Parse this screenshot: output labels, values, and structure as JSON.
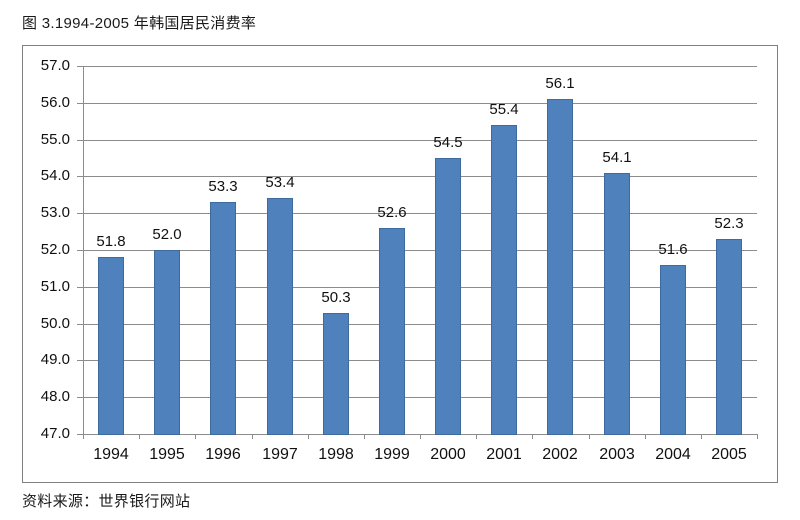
{
  "figure": {
    "title": "图 3.1994-2005 年韩国居民消费率",
    "source": "资料来源：世界银行网站"
  },
  "chart_data": {
    "type": "bar",
    "title": "图 3.1994-2005 年韩国居民消费率",
    "xlabel": "",
    "ylabel": "",
    "categories": [
      "1994",
      "1995",
      "1996",
      "1997",
      "1998",
      "1999",
      "2000",
      "2001",
      "2002",
      "2003",
      "2004",
      "2005"
    ],
    "values": [
      51.8,
      52.0,
      53.3,
      53.4,
      50.3,
      52.6,
      54.5,
      55.4,
      56.1,
      54.1,
      51.6,
      52.3
    ],
    "data_labels": [
      "51.8",
      "52.0",
      "53.3",
      "53.4",
      "50.3",
      "52.6",
      "54.5",
      "55.4",
      "56.1",
      "54.1",
      "51.6",
      "52.3"
    ],
    "ylim": [
      47.0,
      57.0
    ],
    "ytick_step": 1.0,
    "ytick_labels": [
      "47.0",
      "48.0",
      "49.0",
      "50.0",
      "51.0",
      "52.0",
      "53.0",
      "54.0",
      "55.0",
      "56.0",
      "57.0"
    ],
    "grid": true,
    "legend": "none",
    "source_note": "资料来源：世界银行网站",
    "colors": {
      "bar_fill": "#4F81BD",
      "bar_border": "#3F6A9D",
      "gridline": "#8C8C8C",
      "axis": "#8C8C8C",
      "frame_border": "#808080",
      "text": "#111111",
      "background": "#FFFFFF"
    }
  }
}
